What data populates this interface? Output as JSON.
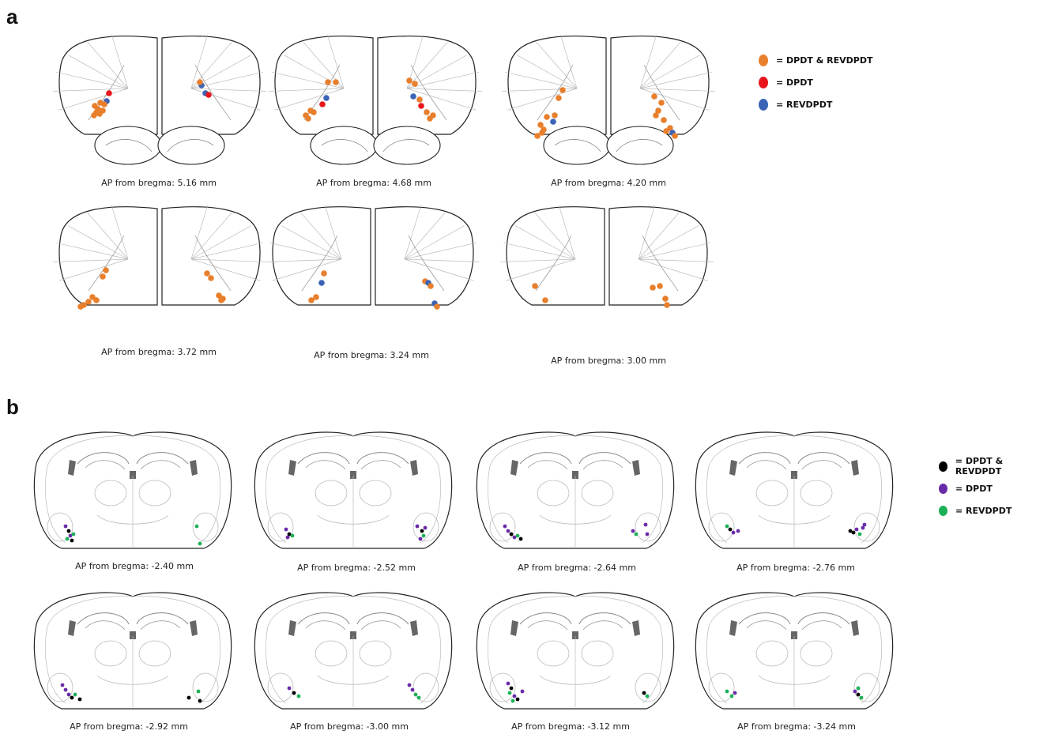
{
  "panels": [
    {
      "letter": "a",
      "legend": [
        {
          "label": "= DPDT & REVDPDT",
          "color": "#E87F2C"
        },
        {
          "label": "= DPDT",
          "color": "#E8161C"
        },
        {
          "label": "= REVDPDT",
          "color": "#3A63B6"
        }
      ],
      "sections": [
        {
          "caption": "AP from bregma: 5.16 mm"
        },
        {
          "caption": "AP from bregma: 4.68 mm"
        },
        {
          "caption": "AP from bregma: 4.20 mm"
        },
        {
          "caption": "AP from bregma: 3.72 mm"
        },
        {
          "caption": "AP from bregma: 3.24 mm"
        },
        {
          "caption": "AP from bregma: 3.00 mm"
        }
      ]
    },
    {
      "letter": "b",
      "legend": [
        {
          "label": "= DPDT & REVDPDT",
          "color": "#000000"
        },
        {
          "label": "= DPDT",
          "color": "#6A2BA8"
        },
        {
          "label": "= REVDPDT",
          "color": "#1DB157"
        }
      ],
      "sections": [
        {
          "caption": "AP from bregma: -2.40 mm"
        },
        {
          "caption": "AP from bregma: -2.52 mm"
        },
        {
          "caption": "AP from bregma: -2.64 mm"
        },
        {
          "caption": "AP from bregma: -2.76 mm"
        },
        {
          "caption": "AP from bregma: -2.92 mm"
        },
        {
          "caption": "AP from bregma: -3.00 mm"
        },
        {
          "caption": "AP from bregma: -3.12 mm"
        },
        {
          "caption": "AP from bregma: -3.24 mm"
        }
      ]
    }
  ]
}
